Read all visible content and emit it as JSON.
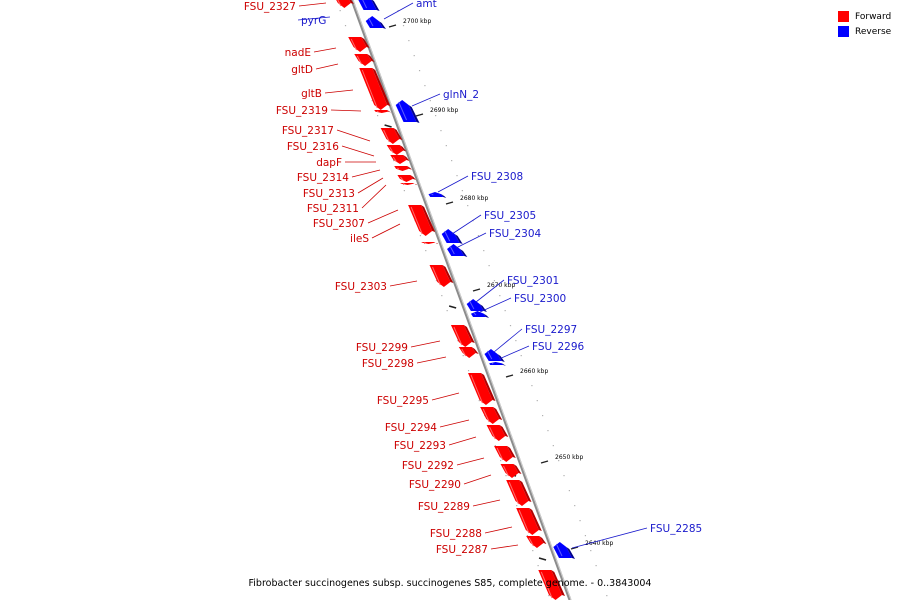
{
  "caption": "Fibrobacter succinogenes subsp. succinogenes S85, complete genome. - 0..3843004",
  "colors": {
    "forward": "#ff0000",
    "forward_dark": "#b30000",
    "reverse": "#0000ff",
    "reverse_dark": "#00008c",
    "forward_label": "#cc0000",
    "reverse_label": "#1a1acc",
    "axis": "#8c8c8c"
  },
  "legend": {
    "forward": "Forward",
    "reverse": "Reverse"
  },
  "scale_labels": [
    "2700 kbp",
    "2690 kbp",
    "2680 kbp",
    "2670 kbp",
    "2660 kbp",
    "2650 kbp",
    "2640 kbp"
  ],
  "genes": [
    {
      "name": "FSU_2327",
      "strand": "forward"
    },
    {
      "name": "pyrG",
      "strand": "reverse"
    },
    {
      "name": "amt",
      "strand": "reverse"
    },
    {
      "name": "nadE",
      "strand": "forward"
    },
    {
      "name": "gltD",
      "strand": "forward"
    },
    {
      "name": "gltB",
      "strand": "forward"
    },
    {
      "name": "FSU_2319",
      "strand": "forward"
    },
    {
      "name": "glnN_2",
      "strand": "reverse"
    },
    {
      "name": "FSU_2317",
      "strand": "forward"
    },
    {
      "name": "FSU_2316",
      "strand": "forward"
    },
    {
      "name": "dapF",
      "strand": "forward"
    },
    {
      "name": "FSU_2314",
      "strand": "forward"
    },
    {
      "name": "FSU_2313",
      "strand": "forward"
    },
    {
      "name": "FSU_2311",
      "strand": "forward"
    },
    {
      "name": "FSU_2308",
      "strand": "reverse"
    },
    {
      "name": "FSU_2307",
      "strand": "forward"
    },
    {
      "name": "FSU_2305",
      "strand": "reverse"
    },
    {
      "name": "FSU_2304",
      "strand": "reverse"
    },
    {
      "name": "ileS",
      "strand": "forward"
    },
    {
      "name": "FSU_2303",
      "strand": "forward"
    },
    {
      "name": "FSU_2301",
      "strand": "reverse"
    },
    {
      "name": "FSU_2300",
      "strand": "reverse"
    },
    {
      "name": "FSU_2299",
      "strand": "forward"
    },
    {
      "name": "FSU_2298",
      "strand": "forward"
    },
    {
      "name": "FSU_2297",
      "strand": "reverse"
    },
    {
      "name": "FSU_2296",
      "strand": "reverse"
    },
    {
      "name": "FSU_2295",
      "strand": "forward"
    },
    {
      "name": "FSU_2294",
      "strand": "forward"
    },
    {
      "name": "FSU_2293",
      "strand": "forward"
    },
    {
      "name": "FSU_2292",
      "strand": "forward"
    },
    {
      "name": "FSU_2290",
      "strand": "forward"
    },
    {
      "name": "FSU_2289",
      "strand": "forward"
    },
    {
      "name": "FSU_2288",
      "strand": "forward"
    },
    {
      "name": "FSU_2287",
      "strand": "forward"
    },
    {
      "name": "FSU_2285",
      "strand": "reverse"
    }
  ]
}
